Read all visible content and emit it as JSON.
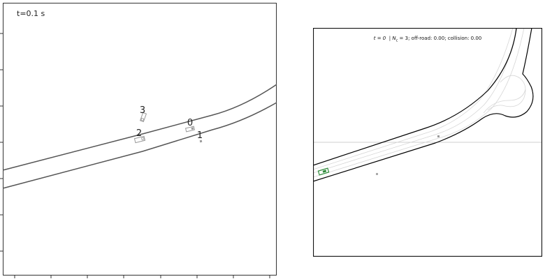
{
  "left_panel": {
    "time_label": "t=0.1 s",
    "agents": [
      {
        "id": "0",
        "label": "0"
      },
      {
        "id": "1",
        "label": "1"
      },
      {
        "id": "2",
        "label": "2"
      },
      {
        "id": "3",
        "label": "3"
      }
    ]
  },
  "right_panel": {
    "time_text": "t = 0",
    "count_text": "N",
    "count_sub": "c",
    "count_value": " = 3; off-road: 0.00; collision: 0.00"
  },
  "colors": {
    "road_edge": "#555555",
    "vehicle": "#999999",
    "ego_vehicle": "#2e8b3a",
    "lane_line": "#d0d0d0",
    "road_boundary": "#000000"
  }
}
